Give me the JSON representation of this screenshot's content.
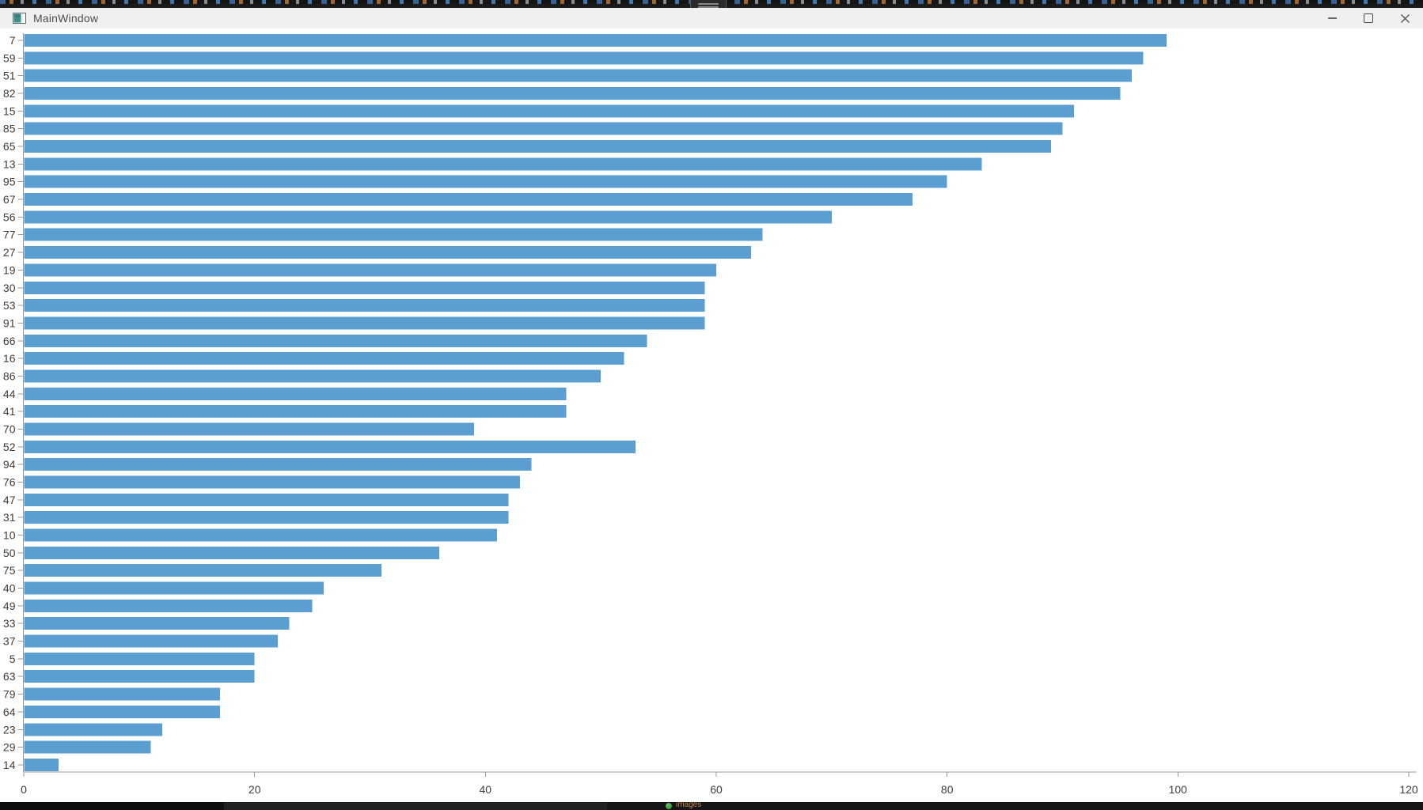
{
  "window": {
    "title": "MainWindow",
    "controls": {
      "minimize": "minimize",
      "maximize": "maximize",
      "close": "close"
    }
  },
  "chart_data": {
    "type": "bar",
    "orientation": "horizontal",
    "title": "",
    "xlabel": "",
    "ylabel": "",
    "grid": false,
    "legend": "none",
    "xlim": [
      0,
      120
    ],
    "x_ticks": [
      0,
      20,
      40,
      60,
      80,
      100,
      120
    ],
    "categories": [
      "7",
      "59",
      "51",
      "82",
      "15",
      "85",
      "65",
      "13",
      "95",
      "67",
      "56",
      "77",
      "27",
      "19",
      "30",
      "53",
      "91",
      "66",
      "16",
      "86",
      "44",
      "41",
      "70",
      "52",
      "94",
      "76",
      "47",
      "31",
      "10",
      "50",
      "75",
      "40",
      "49",
      "33",
      "37",
      "5",
      "63",
      "79",
      "64",
      "23",
      "29",
      "14"
    ],
    "values": [
      99,
      97,
      96,
      95,
      91,
      90,
      89,
      83,
      80,
      77,
      70,
      64,
      63,
      60,
      59,
      59,
      59,
      54,
      52,
      50,
      47,
      47,
      39,
      53,
      44,
      43,
      42,
      42,
      41,
      36,
      31,
      26,
      25,
      23,
      22,
      20,
      20,
      17,
      17,
      12,
      11,
      3
    ],
    "bar_color": "#5b9fd2",
    "axis_color": "#9a9a9a",
    "tick_label_color": "#3d3d3d"
  },
  "background": {
    "taskbar_label": "images"
  }
}
